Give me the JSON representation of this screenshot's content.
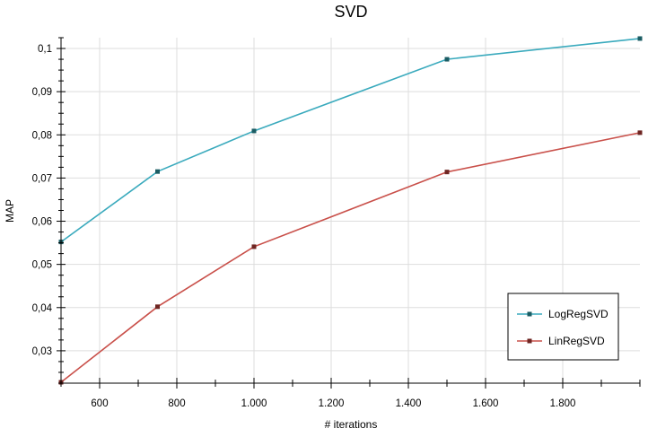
{
  "chart_data": {
    "type": "line",
    "title": "SVD",
    "xlabel": "# iterations",
    "ylabel": "MAP",
    "xlim": [
      500,
      2000
    ],
    "ylim": [
      0.0225,
      0.1025
    ],
    "grid": true,
    "legend_position": "bottom-right",
    "x_ticks": [
      {
        "value": 600,
        "label": "600"
      },
      {
        "value": 800,
        "label": "800"
      },
      {
        "value": 1000,
        "label": "1.000"
      },
      {
        "value": 1200,
        "label": "1.200"
      },
      {
        "value": 1400,
        "label": "1.400"
      },
      {
        "value": 1600,
        "label": "1.600"
      },
      {
        "value": 1800,
        "label": "1.800"
      }
    ],
    "y_ticks": [
      {
        "value": 0.03,
        "label": "0,03"
      },
      {
        "value": 0.04,
        "label": "0,04"
      },
      {
        "value": 0.05,
        "label": "0,05"
      },
      {
        "value": 0.06,
        "label": "0,06"
      },
      {
        "value": 0.07,
        "label": "0,07"
      },
      {
        "value": 0.08,
        "label": "0,08"
      },
      {
        "value": 0.09,
        "label": "0,09"
      },
      {
        "value": 0.1,
        "label": "0,1"
      }
    ],
    "series": [
      {
        "name": "LogRegSVD",
        "line_color": "#3aaabd",
        "marker_color": "#1b5c63",
        "x": [
          500,
          750,
          1000,
          1500,
          2000
        ],
        "y": [
          0.0552,
          0.0715,
          0.0809,
          0.0975,
          0.1023
        ]
      },
      {
        "name": "LinRegSVD",
        "line_color": "#c9504a",
        "marker_color": "#6e2522",
        "x": [
          500,
          750,
          1000,
          1500,
          2000
        ],
        "y": [
          0.0227,
          0.0402,
          0.0541,
          0.0714,
          0.0805
        ]
      }
    ]
  }
}
